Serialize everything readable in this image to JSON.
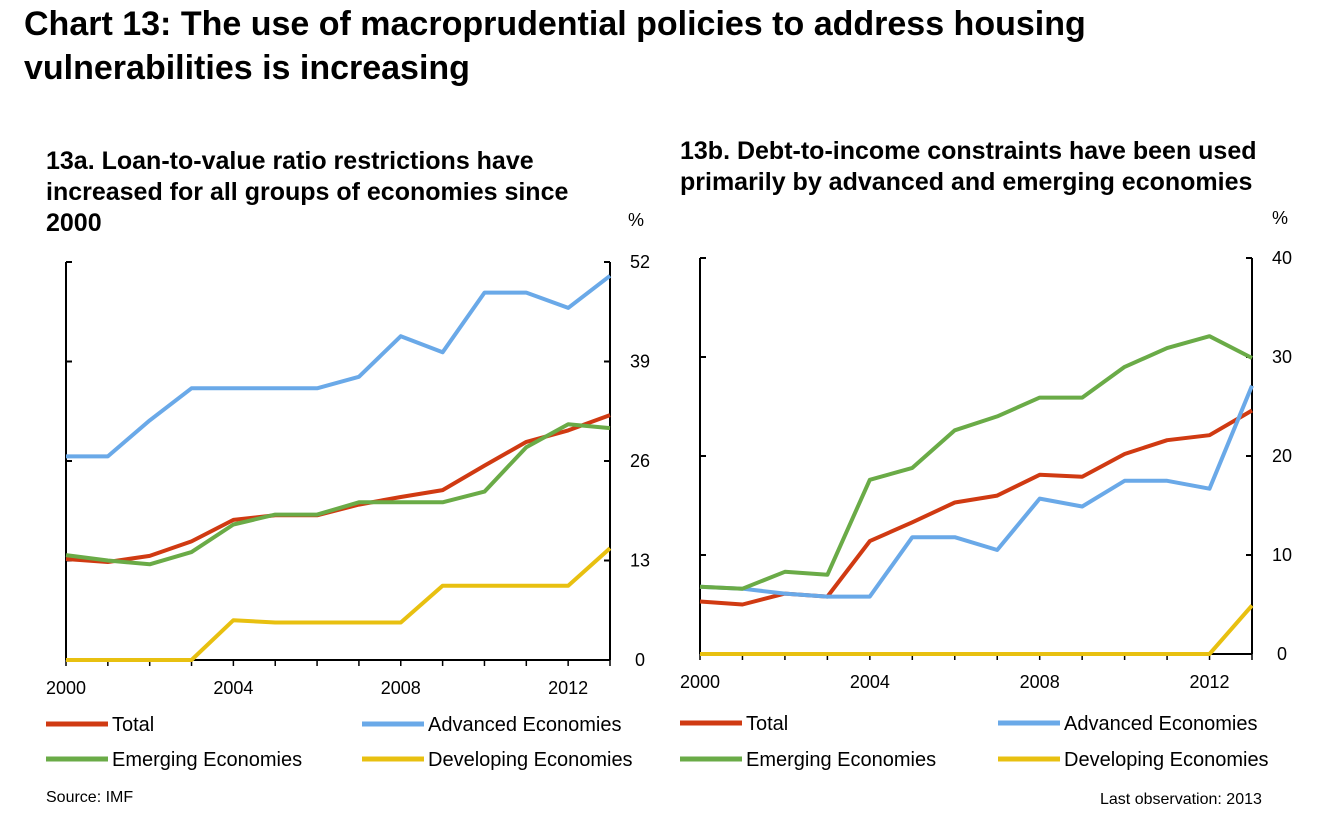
{
  "title": "Chart 13: The use of macroprudential policies to address housing vulnerabilities is increasing",
  "source": "Source: IMF",
  "last_observation": "Last observation: 2013",
  "colors": {
    "Total": "#d03a12",
    "Advanced Economies": "#6aa9e8",
    "Emerging Economies": "#6aab47",
    "Developing Economies": "#e8c010"
  },
  "chart_data": [
    {
      "type": "line",
      "title": "13a. Loan-to-value ratio restrictions have increased for all groups of economies since 2000",
      "unit": "%",
      "x": [
        2000,
        2001,
        2002,
        2003,
        2004,
        2005,
        2006,
        2007,
        2008,
        2009,
        2010,
        2011,
        2012,
        2013
      ],
      "xticks": [
        2000,
        2004,
        2008,
        2012
      ],
      "ylim": [
        0,
        52
      ],
      "yticks": [
        0,
        13,
        26,
        39,
        52
      ],
      "y_axis_side": "right",
      "legend_position": "bottom",
      "grid": false,
      "series": [
        {
          "name": "Total",
          "values": [
            13.2,
            12.8,
            13.6,
            15.5,
            18.3,
            18.9,
            18.9,
            20.3,
            21.3,
            22.2,
            25.4,
            28.5,
            30.0,
            32.0
          ]
        },
        {
          "name": "Advanced Economies",
          "values": [
            26.6,
            26.6,
            31.3,
            35.5,
            35.5,
            35.5,
            35.5,
            37.0,
            42.3,
            40.2,
            48.0,
            48.0,
            46.0,
            50.2
          ]
        },
        {
          "name": "Emerging Economies",
          "values": [
            13.7,
            13.0,
            12.5,
            14.1,
            17.7,
            19.0,
            19.0,
            20.6,
            20.6,
            20.6,
            22.0,
            27.8,
            30.8,
            30.3
          ]
        },
        {
          "name": "Developing Economies",
          "values": [
            0.0,
            0.0,
            0.0,
            0.0,
            5.2,
            4.9,
            4.9,
            4.9,
            4.9,
            9.7,
            9.7,
            9.7,
            9.7,
            14.6
          ]
        }
      ]
    },
    {
      "type": "line",
      "title": "13b. Debt-to-income constraints have been used primarily by advanced and emerging economies",
      "unit": "%",
      "x": [
        2000,
        2001,
        2002,
        2003,
        2004,
        2005,
        2006,
        2007,
        2008,
        2009,
        2010,
        2011,
        2012,
        2013
      ],
      "xticks": [
        2000,
        2004,
        2008,
        2012
      ],
      "ylim": [
        0,
        40
      ],
      "yticks": [
        0,
        10,
        20,
        30,
        40
      ],
      "y_axis_side": "right",
      "legend_position": "bottom",
      "grid": false,
      "series": [
        {
          "name": "Total",
          "values": [
            5.3,
            5.0,
            6.1,
            5.8,
            11.4,
            13.3,
            15.3,
            16.0,
            18.1,
            17.9,
            20.2,
            21.6,
            22.1,
            24.6
          ]
        },
        {
          "name": "Advanced Economies",
          "values": [
            6.8,
            6.6,
            6.1,
            5.8,
            5.8,
            11.8,
            11.8,
            10.5,
            15.7,
            14.9,
            17.5,
            17.5,
            16.7,
            27.1
          ]
        },
        {
          "name": "Emerging Economies",
          "values": [
            6.8,
            6.6,
            8.3,
            8.0,
            17.6,
            18.8,
            22.6,
            24.0,
            25.9,
            25.9,
            29.0,
            30.9,
            32.1,
            29.9
          ]
        },
        {
          "name": "Developing Economies",
          "values": [
            0.0,
            0.0,
            0.0,
            0.0,
            0.0,
            0.0,
            0.0,
            0.0,
            0.0,
            0.0,
            0.0,
            0.0,
            0.0,
            4.9
          ]
        }
      ]
    }
  ]
}
